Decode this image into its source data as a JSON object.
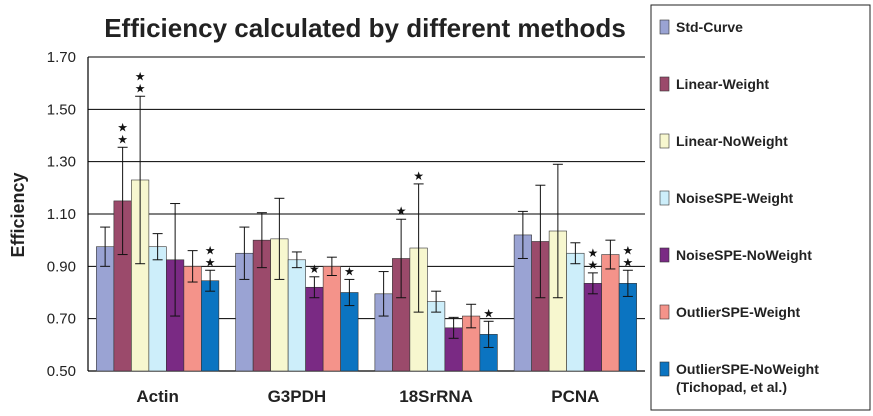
{
  "chart_data": {
    "type": "bar",
    "title": "Efficiency calculated by different methods",
    "xlabel": "",
    "ylabel": "Efficiency",
    "ylim": [
      0.5,
      1.7
    ],
    "yticks": [
      "0.50",
      "0.70",
      "0.90",
      "1.10",
      "1.30",
      "1.50",
      "1.70"
    ],
    "grid": true,
    "legend_position": "right",
    "categories": [
      "Actin",
      "G3PDH",
      "18SrRNA",
      "PCNA"
    ],
    "series": [
      {
        "name": "Std-Curve",
        "color": "#9aa3d3",
        "values": [
          0.975,
          0.95,
          0.795,
          1.02
        ],
        "err": [
          0.075,
          0.1,
          0.085,
          0.09
        ],
        "stars": [
          0,
          0,
          0,
          0
        ]
      },
      {
        "name": "Linear-Weight",
        "color": "#9b4a6b",
        "values": [
          1.15,
          1.0,
          0.93,
          0.995
        ],
        "err": [
          0.205,
          0.105,
          0.15,
          0.215
        ],
        "stars": [
          2,
          0,
          1,
          0
        ]
      },
      {
        "name": "Linear-NoWeight",
        "color": "#f7f7cf",
        "values": [
          1.23,
          1.005,
          0.97,
          1.035
        ],
        "err": [
          0.32,
          0.155,
          0.245,
          0.255
        ],
        "stars": [
          2,
          0,
          1,
          0
        ]
      },
      {
        "name": "NoiseSPE-Weight",
        "color": "#cdeefa",
        "values": [
          0.975,
          0.925,
          0.765,
          0.95
        ],
        "err": [
          0.05,
          0.03,
          0.04,
          0.04
        ],
        "stars": [
          0,
          0,
          0,
          0
        ]
      },
      {
        "name": "NoiseSPE-NoWeight",
        "color": "#7a2a84",
        "values": [
          0.925,
          0.82,
          0.665,
          0.835
        ],
        "err": [
          0.215,
          0.04,
          0.04,
          0.04
        ],
        "stars": [
          0,
          1,
          0,
          2
        ]
      },
      {
        "name": "OutlierSPE-Weight",
        "color": "#f4938a",
        "values": [
          0.9,
          0.9,
          0.71,
          0.945
        ],
        "err": [
          0.06,
          0.035,
          0.045,
          0.055
        ],
        "stars": [
          0,
          0,
          0,
          0
        ]
      },
      {
        "name": "OutlierSPE-NoWeight",
        "color": "#0b74c1",
        "values": [
          0.845,
          0.8,
          0.64,
          0.835
        ],
        "err": [
          0.04,
          0.05,
          0.05,
          0.05
        ],
        "stars": [
          2,
          1,
          1,
          2
        ]
      }
    ],
    "legend_note": "(Tichopad, et al.)",
    "annotation_symbol": "★"
  }
}
